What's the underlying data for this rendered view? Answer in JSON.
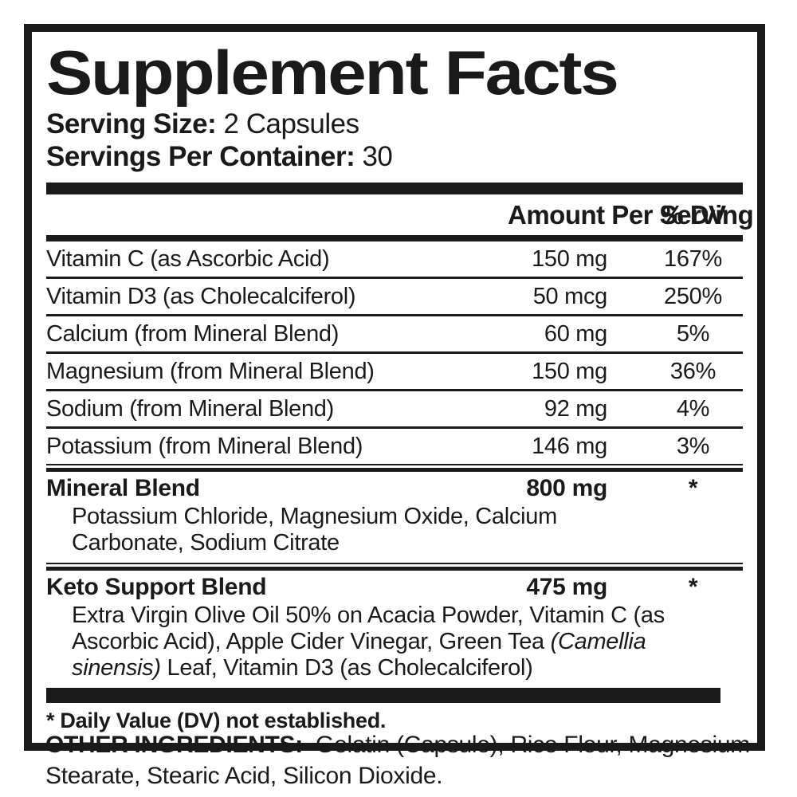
{
  "label": {
    "title": "Supplement Facts",
    "serving_size_label": "Serving Size:",
    "serving_size_value": "2 Capsules",
    "servings_per_container_label": "Servings Per Container:",
    "servings_per_container_value": "30",
    "header": {
      "amount": "Amount Per Serving",
      "dv": "% DV"
    },
    "rows": [
      {
        "name": "Vitamin C (as Ascorbic Acid)",
        "amount": "150 mg",
        "dv": "167%"
      },
      {
        "name": "Vitamin D3 (as Cholecalciferol)",
        "amount": "50 mcg",
        "dv": "250%"
      },
      {
        "name": "Calcium (from Mineral Blend)",
        "amount": "60 mg",
        "dv": "5%"
      },
      {
        "name": "Magnesium (from Mineral Blend)",
        "amount": "150 mg",
        "dv": "36%"
      },
      {
        "name": "Sodium (from Mineral Blend)",
        "amount": "92 mg",
        "dv": "4%"
      },
      {
        "name": "Potassium (from Mineral Blend)",
        "amount": "146 mg",
        "dv": "3%"
      }
    ],
    "blends": [
      {
        "name": "Mineral Blend",
        "amount": "800 mg",
        "dv": "*",
        "ingredients_parts": [
          {
            "text": "Potassium Chloride, Magnesium Oxide, Calcium Carbonate, Sodium Citrate",
            "italic": false
          }
        ]
      },
      {
        "name": "Keto Support Blend",
        "amount": "475 mg",
        "dv": "*",
        "ingredients_parts": [
          {
            "text": "Extra Virgin Olive Oil 50% on Acacia Powder, Vitamin C (as Ascorbic Acid), Apple Cider Vinegar, Green Tea ",
            "italic": false
          },
          {
            "text": "(Camellia sinensis)",
            "italic": true
          },
          {
            "text": " Leaf, Vitamin D3 (as Cholecalciferol)",
            "italic": false
          }
        ]
      }
    ],
    "footnote": "* Daily Value (DV) not established.",
    "other_ingredients_label": "OTHER INGREDIENTS:",
    "other_ingredients_text": "Gelatin (Capsule), Rice Flour, Magnesium Stearate, Stearic Acid, Silicon Dioxide."
  }
}
